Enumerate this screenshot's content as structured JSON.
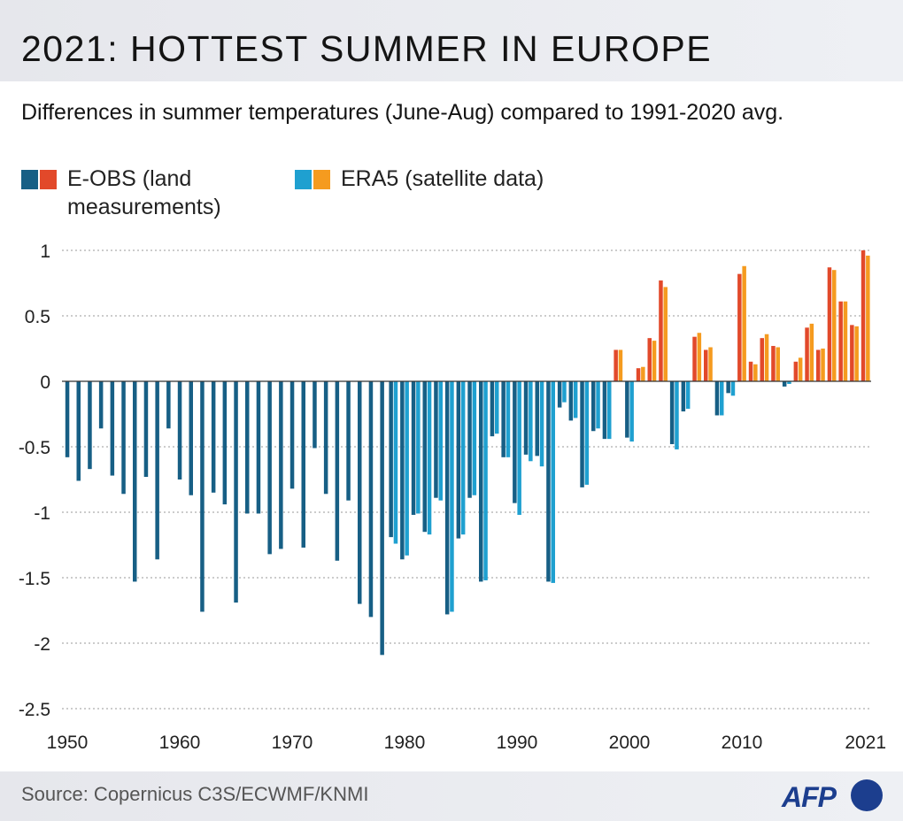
{
  "header": {
    "title": "2021: HOTTEST SUMMER IN EUROPE"
  },
  "subtitle": "Differences in summer temperatures (June-Aug) compared to 1991-2020 avg.",
  "legend": {
    "eobs": {
      "label": "E-OBS (land measurements)",
      "colors": [
        "#175f85",
        "#e2492a"
      ]
    },
    "era5": {
      "label": "ERA5 (satellite data)",
      "colors": [
        "#1fa0d0",
        "#f59b1f"
      ]
    }
  },
  "colors": {
    "eobs_negative": "#175f85",
    "eobs_positive": "#e2492a",
    "era5_negative": "#1fa0d0",
    "era5_positive": "#f59b1f",
    "gridline": "#9a9a9a",
    "axis": "#333333"
  },
  "chart_data": {
    "type": "bar",
    "title": "2021: HOTTEST SUMMER IN EUROPE",
    "subtitle": "Differences in summer temperatures (June-Aug) compared to 1991-2020 avg.",
    "xlabel": "",
    "ylabel": "",
    "x_ticks": [
      1950,
      1960,
      1970,
      1980,
      1990,
      2000,
      2010,
      2021
    ],
    "y_ticks": [
      1,
      0.5,
      0,
      -0.5,
      -1,
      -1.5,
      -2,
      -2.5
    ],
    "y_tick_labels": [
      "1",
      "0.5",
      "0",
      "-0.5",
      "-1",
      "-1.5",
      "-2",
      "-2.5"
    ],
    "ylim": [
      -2.5,
      1
    ],
    "grid": true,
    "legend_position": "top-left",
    "x": [
      1950,
      1951,
      1952,
      1953,
      1954,
      1955,
      1956,
      1957,
      1958,
      1959,
      1960,
      1961,
      1962,
      1963,
      1964,
      1965,
      1966,
      1967,
      1968,
      1969,
      1970,
      1971,
      1972,
      1973,
      1974,
      1975,
      1976,
      1977,
      1978,
      1979,
      1980,
      1981,
      1982,
      1983,
      1984,
      1985,
      1986,
      1987,
      1988,
      1989,
      1990,
      1991,
      1992,
      1993,
      1994,
      1995,
      1996,
      1997,
      1998,
      1999,
      2000,
      2001,
      2002,
      2003,
      2004,
      2005,
      2006,
      2007,
      2008,
      2009,
      2010,
      2011,
      2012,
      2013,
      2014,
      2015,
      2016,
      2017,
      2018,
      2019,
      2020,
      2021
    ],
    "series": [
      {
        "name": "E-OBS (land measurements)",
        "values": [
          -0.58,
          -0.76,
          -0.67,
          -0.36,
          -0.72,
          -0.86,
          -1.53,
          -0.73,
          -1.36,
          -0.36,
          -0.75,
          -0.87,
          -1.76,
          -0.85,
          -0.94,
          -1.69,
          -1.01,
          -1.01,
          -1.32,
          -1.28,
          -0.82,
          -1.27,
          -0.51,
          -0.86,
          -1.37,
          -0.91,
          -1.7,
          -1.8,
          -2.09,
          -1.19,
          -1.36,
          -1.02,
          -1.15,
          -0.89,
          -1.78,
          -1.2,
          -0.89,
          -1.53,
          -0.42,
          -0.58,
          -0.93,
          -0.56,
          -0.57,
          -1.53,
          -0.2,
          -0.3,
          -0.81,
          -0.38,
          -0.44,
          0.24,
          -0.43,
          0.1,
          0.33,
          0.77,
          -0.48,
          -0.23,
          0.34,
          0.24,
          -0.26,
          -0.09,
          0.82,
          0.15,
          0.33,
          0.27,
          -0.04,
          0.15,
          0.41,
          0.24,
          0.87,
          0.61,
          0.43,
          1.0
        ]
      },
      {
        "name": "ERA5 (satellite data)",
        "values": [
          null,
          null,
          null,
          null,
          null,
          null,
          null,
          null,
          null,
          null,
          null,
          null,
          null,
          null,
          null,
          null,
          null,
          null,
          null,
          null,
          null,
          null,
          null,
          null,
          null,
          null,
          null,
          null,
          null,
          -1.24,
          -1.33,
          -1.01,
          -1.17,
          -0.91,
          -1.76,
          -1.17,
          -0.87,
          -1.52,
          -0.4,
          -0.58,
          -1.02,
          -0.61,
          -0.65,
          -1.54,
          -0.16,
          -0.28,
          -0.79,
          -0.36,
          -0.44,
          0.24,
          -0.46,
          0.11,
          0.31,
          0.72,
          -0.52,
          -0.21,
          0.37,
          0.26,
          -0.26,
          -0.11,
          0.88,
          0.13,
          0.36,
          0.26,
          -0.02,
          0.18,
          0.44,
          0.25,
          0.85,
          0.61,
          0.42,
          0.96
        ]
      }
    ]
  },
  "footer": {
    "source": "Source: Copernicus C3S/ECWMF/KNMI",
    "logo_text": "AFP"
  }
}
